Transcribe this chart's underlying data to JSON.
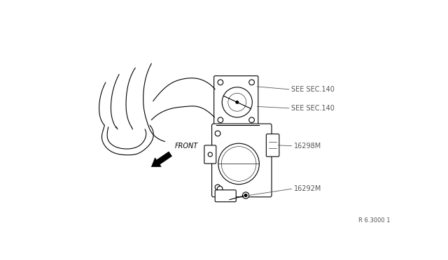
{
  "bg_color": "#ffffff",
  "line_color": "#000000",
  "gray_line": "#888888",
  "label_color": "#555555",
  "front_text": "FRONT",
  "ref_label": "R 6.3000 1",
  "label_sec140_1": "SEE SEC.140",
  "label_sec140_2": "SEE SEC.140",
  "label_16298m": "16298M",
  "label_16292m": "16292M"
}
